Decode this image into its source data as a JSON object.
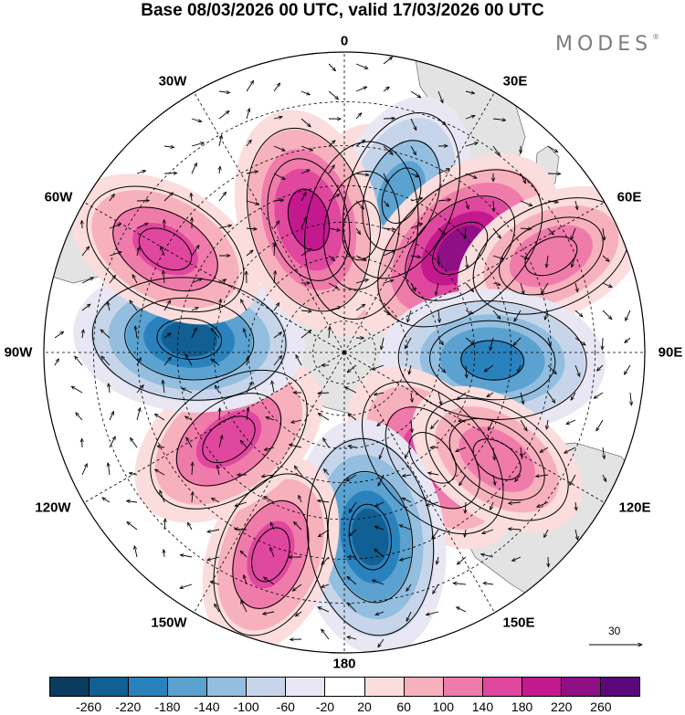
{
  "title": "Base 08/03/2026 00 UTC, valid 17/03/2026 00 UTC",
  "brand": "MODES",
  "brand_mark": "®",
  "longitude_labels": {
    "lon_0": "0",
    "lon_30e": "30E",
    "lon_60e": "60E",
    "lon_90e": "90E",
    "lon_120e": "120E",
    "lon_150e": "150E",
    "lon_180": "180",
    "lon_150w": "150W",
    "lon_120w": "120W",
    "lon_90w": "90W",
    "lon_60w": "60W",
    "lon_30w": "30W"
  },
  "reference_vector_label": "30",
  "colorbar": {
    "colors": [
      "#0b3b5e",
      "#125f93",
      "#2a82bd",
      "#5ba2d0",
      "#93bedf",
      "#c7d5ea",
      "#e8e7f3",
      "#ffffff",
      "#fbdddd",
      "#f7b1bd",
      "#ef7bab",
      "#e0479f",
      "#c4188f",
      "#8f0f85",
      "#5a087a"
    ],
    "tick_labels": [
      "-260",
      "-220",
      "-180",
      "-140",
      "-100",
      "-60",
      "-20",
      "20",
      "60",
      "100",
      "140",
      "180",
      "220",
      "260"
    ]
  },
  "map_colors": {
    "land": "#e3e3e3",
    "neg_levels": [
      "#e8e7f3",
      "#c7d5ea",
      "#93bedf",
      "#5ba2d0",
      "#2a82bd",
      "#125f93"
    ],
    "pos_levels": [
      "#fbdddd",
      "#f7b1bd",
      "#ef7bab",
      "#e0479f",
      "#c4188f",
      "#8f0f85"
    ]
  },
  "anomaly_centers": [
    {
      "name": "anomaly-dakar-high",
      "lat": -52,
      "lon": 8,
      "amp": 180
    },
    {
      "name": "anomaly-south-atlantic-low",
      "lat": -40,
      "lon": 20,
      "amp": -155
    },
    {
      "name": "anomaly-south-africa-high",
      "lat": -43,
      "lon": 48,
      "amp": 230
    },
    {
      "name": "anomaly-indian-ocean-high",
      "lat": -25,
      "lon": 65,
      "amp": 130
    },
    {
      "name": "anomaly-indian-ocean-low",
      "lat": -45,
      "lon": 93,
      "amp": -215
    },
    {
      "name": "anomaly-australia-high",
      "lat": -48,
      "lon": 140,
      "amp": 170
    },
    {
      "name": "anomaly-australia-east-high",
      "lat": -35,
      "lon": 125,
      "amp": 110
    },
    {
      "name": "anomaly-new-zealand-low",
      "lat": -35,
      "lon": 172,
      "amp": -250
    },
    {
      "name": "anomaly-south-pacific-high",
      "lat": -28,
      "lon": -160,
      "amp": 140
    },
    {
      "name": "anomaly-east-pacific-high",
      "lat": -46,
      "lon": -127,
      "amp": 175
    },
    {
      "name": "anomaly-drake-low",
      "lat": -43,
      "lon": -85,
      "amp": -235
    },
    {
      "name": "anomaly-south-america-high",
      "lat": -30,
      "lon": -60,
      "amp": 150
    },
    {
      "name": "anomaly-weddell-high",
      "lat": -48,
      "lon": -15,
      "amp": 210
    }
  ]
}
